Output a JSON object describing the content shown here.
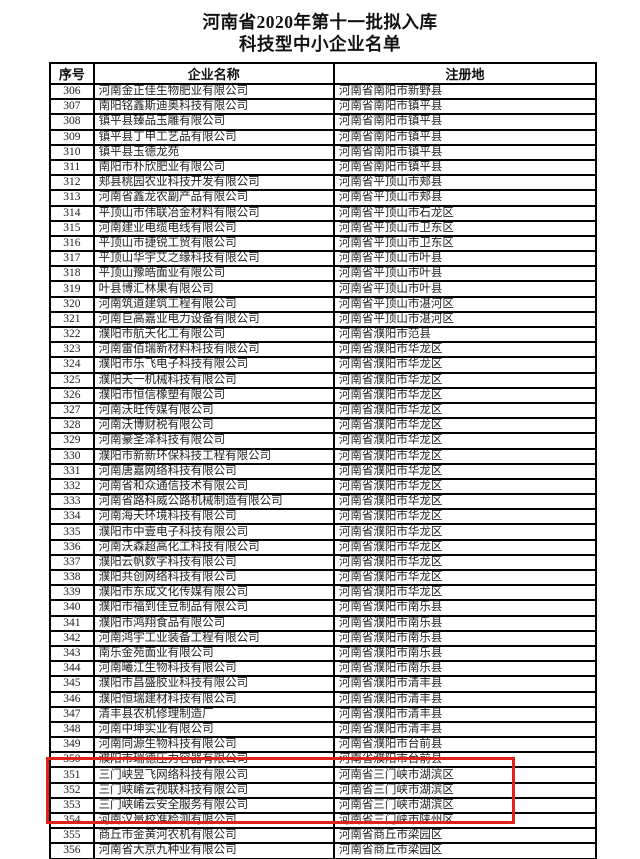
{
  "title": {
    "line1": "河南省2020年第十一批拟入库",
    "line2": "科技型中小企业名单"
  },
  "table": {
    "headers": [
      "序号",
      "企业名称",
      "注册地"
    ],
    "rows": [
      [
        "306",
        "河南金正佳生物肥业有限公司",
        "河南省南阳市新野县"
      ],
      [
        "307",
        "南阳铭鑫斯迪奥科技有限公司",
        "河南省南阳市镇平县"
      ],
      [
        "308",
        "镇平县臻品玉雕有限公司",
        "河南省南阳市镇平县"
      ],
      [
        "309",
        "镇平县丁甲工艺品有限公司",
        "河南省南阳市镇平县"
      ],
      [
        "310",
        "镇平县玉德龙苑",
        "河南省南阳市镇平县"
      ],
      [
        "311",
        "南阳市朴欣肥业有限公司",
        "河南省南阳市镇平县"
      ],
      [
        "312",
        "郏县桃园农业科技开发有限公司",
        "河南省平顶山市郏县"
      ],
      [
        "313",
        "河南省鑫龙农副产品有限公司",
        "河南省平顶山市郏县"
      ],
      [
        "314",
        "平顶山市伟联冶金材料有限公司",
        "河南省平顶山市石龙区"
      ],
      [
        "315",
        "河南建业电缆电线有限公司",
        "河南省平顶山市卫东区"
      ],
      [
        "316",
        "平顶山市捷锐工贸有限公司",
        "河南省平顶山市卫东区"
      ],
      [
        "317",
        "平顶山华宇艾之缘科技有限公司",
        "河南省平顶山市叶县"
      ],
      [
        "318",
        "平顶山豫皓面业有限公司",
        "河南省平顶山市叶县"
      ],
      [
        "319",
        "叶县博汇林果有限公司",
        "河南省平顶山市叶县"
      ],
      [
        "320",
        "河南筑道建筑工程有限公司",
        "河南省平顶山市湛河区"
      ],
      [
        "321",
        "河南巨高嘉业电力设备有限公司",
        "河南省平顶山市湛河区"
      ],
      [
        "322",
        "濮阳市航天化工有限公司",
        "河南省濮阳市范县"
      ],
      [
        "323",
        "河南雷佰瑞新材料科技有限公司",
        "河南省濮阳市华龙区"
      ],
      [
        "324",
        "濮阳市乐飞电子科技有限公司",
        "河南省濮阳市华龙区"
      ],
      [
        "325",
        "濮阳天一机械科技有限公司",
        "河南省濮阳市华龙区"
      ],
      [
        "326",
        "濮阳市恒信橡塑有限公司",
        "河南省濮阳市华龙区"
      ],
      [
        "327",
        "河南沃旺传媒有限公司",
        "河南省濮阳市华龙区"
      ],
      [
        "328",
        "河南沃博财税有限公司",
        "河南省濮阳市华龙区"
      ],
      [
        "329",
        "河南豪圣泽科技有限公司",
        "河南省濮阳市华龙区"
      ],
      [
        "330",
        "濮阳市新新环保科技工程有限公司",
        "河南省濮阳市华龙区"
      ],
      [
        "331",
        "河南唐嘉网络科技有限公司",
        "河南省濮阳市华龙区"
      ],
      [
        "332",
        "河南省和众通信技术有限公司",
        "河南省濮阳市华龙区"
      ],
      [
        "333",
        "河南省路科威公路机械制造有限公司",
        "河南省濮阳市华龙区"
      ],
      [
        "334",
        "河南海天环境科技有限公司",
        "河南省濮阳市华龙区"
      ],
      [
        "335",
        "濮阳市中壹电子科技有限公司",
        "河南省濮阳市华龙区"
      ],
      [
        "336",
        "河南沃森超高化工科技有限公司",
        "河南省濮阳市华龙区"
      ],
      [
        "337",
        "濮阳云帆数字科技有限公司",
        "河南省濮阳市华龙区"
      ],
      [
        "338",
        "濮阳共创网络科技有限公司",
        "河南省濮阳市华龙区"
      ],
      [
        "339",
        "濮阳市东成文化传媒有限公司",
        "河南省濮阳市华龙区"
      ],
      [
        "340",
        "濮阳市福到佳豆制品有限公司",
        "河南省濮阳市南乐县"
      ],
      [
        "341",
        "濮阳市鸿翔食品有限公司",
        "河南省濮阳市南乐县"
      ],
      [
        "342",
        "河南鸿宇工业装备工程有限公司",
        "河南省濮阳市南乐县"
      ],
      [
        "343",
        "南乐金苑面业有限公司",
        "河南省濮阳市南乐县"
      ],
      [
        "344",
        "河南曦江生物科技有限公司",
        "河南省濮阳市南乐县"
      ],
      [
        "345",
        "濮阳市昌盛胶业科技有限公司",
        "河南省濮阳市清丰县"
      ],
      [
        "346",
        "濮阳恒瑞建材科技有限公司",
        "河南省濮阳市清丰县"
      ],
      [
        "347",
        "清丰县农机修理制造厂",
        "河南省濮阳市清丰县"
      ],
      [
        "348",
        "河南中坤实业有限公司",
        "河南省濮阳市清丰县"
      ],
      [
        "349",
        "河南同源生物科技有限公司",
        "河南省濮阳市台前县"
      ],
      [
        "350",
        "濮阳市瑞德压力容器有限公司",
        "河南省濮阳市台前县"
      ],
      [
        "351",
        "三门峡昱飞网络科技有限公司",
        "河南省三门峡市湖滨区"
      ],
      [
        "352",
        "三门峡崤云视联科技有限公司",
        "河南省三门峡市湖滨区"
      ],
      [
        "353",
        "三门峡崤云安全服务有限公司",
        "河南省三门峡市湖滨区"
      ],
      [
        "354",
        "河南汉量校准检测有限公司",
        "河南省三门峡市陕州区"
      ],
      [
        "355",
        "商丘市金黄河农机有限公司",
        "河南省商丘市梁园区"
      ],
      [
        "356",
        "河南省大京九种业有限公司",
        "河南省商丘市梁园区"
      ]
    ]
  },
  "highlight": {
    "first_serial": "351",
    "last_serial": "354",
    "color": "#df2318"
  }
}
